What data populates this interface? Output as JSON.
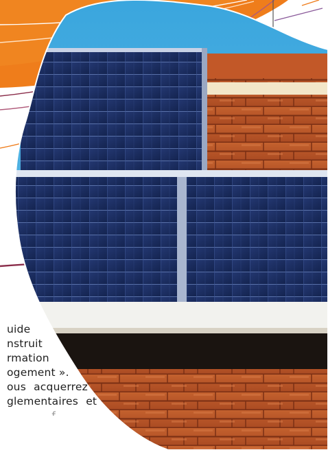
{
  "colors": {
    "orange": "#ef7d1b",
    "sky": "#3fa8dc",
    "tile": "#b9552a",
    "panel": "#1c2c5a",
    "accent_line": "#8a2d4a"
  },
  "photo": {
    "subject": "solar-panels-on-roof"
  },
  "body_lines": [
    "uide",
    "nstruit",
    "rmation",
    "ogement ».",
    "ous acquerrez",
    "glementaires et",
    "...f..."
  ]
}
